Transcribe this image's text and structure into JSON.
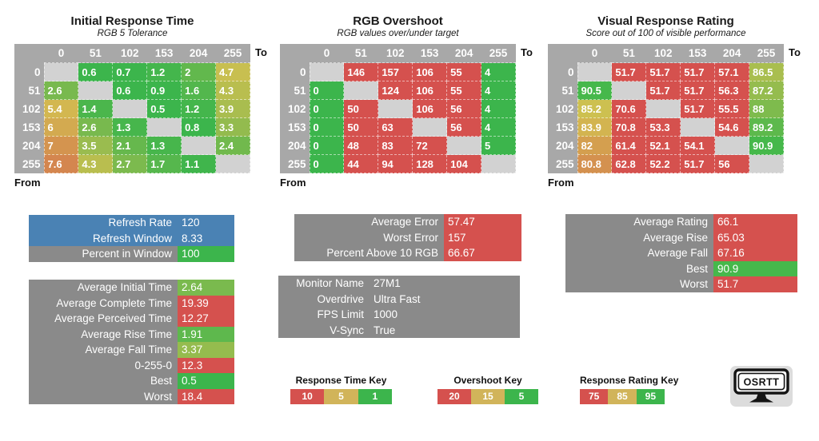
{
  "colors": {
    "green": "#3cb54c",
    "yellow": "#d3c050",
    "red": "#d5514e",
    "blue": "#4a82b4",
    "header_gray": "#a8a8a8",
    "label_gray": "#8a8a8a",
    "diag_gray": "#d2d2d2",
    "logo_card": "#dcdcdc"
  },
  "scales": {
    "time": [
      [
        1,
        "#3cb54c"
      ],
      [
        5,
        "#d3c050"
      ],
      [
        10,
        "#d5514e"
      ]
    ],
    "overshoot": [
      [
        5,
        "#3cb54c"
      ],
      [
        15,
        "#d3c050"
      ],
      [
        20,
        "#d5514e"
      ]
    ],
    "rating": [
      [
        75,
        "#d5514e"
      ],
      [
        85,
        "#d3c050"
      ],
      [
        90,
        "#46b84b"
      ]
    ]
  },
  "chart_data": [
    {
      "type": "heatmap",
      "title": "Initial Response Time",
      "subtitle": "RGB 5 Tolerance",
      "to_label": "To",
      "from_label": "From",
      "scale": "time",
      "columns": [
        "0",
        "51",
        "102",
        "153",
        "204",
        "255"
      ],
      "row_labels": [
        "0",
        "51",
        "102",
        "153",
        "204",
        "255"
      ],
      "values": [
        [
          null,
          "0.6",
          "0.7",
          "1.2",
          "2",
          "4.7"
        ],
        [
          "2.6",
          null,
          "0.6",
          "0.9",
          "1.6",
          "4.3"
        ],
        [
          "5.4",
          "1.4",
          null,
          "0.5",
          "1.2",
          "3.9"
        ],
        [
          "6",
          "2.6",
          "1.3",
          null,
          "0.8",
          "3.3"
        ],
        [
          "7",
          "3.5",
          "2.1",
          "1.3",
          null,
          "2.4"
        ],
        [
          "7.6",
          "4.3",
          "2.7",
          "1.7",
          "1.1",
          null
        ]
      ]
    },
    {
      "type": "heatmap",
      "title": "RGB Overshoot",
      "subtitle": "RGB values over/under target",
      "to_label": "To",
      "from_label": "From",
      "scale": "overshoot",
      "columns": [
        "0",
        "51",
        "102",
        "153",
        "204",
        "255"
      ],
      "row_labels": [
        "0",
        "51",
        "102",
        "153",
        "204",
        "255"
      ],
      "values": [
        [
          null,
          "146",
          "157",
          "106",
          "55",
          "4"
        ],
        [
          "0",
          null,
          "124",
          "106",
          "55",
          "4"
        ],
        [
          "0",
          "50",
          null,
          "106",
          "56",
          "4"
        ],
        [
          "0",
          "50",
          "63",
          null,
          "56",
          "4"
        ],
        [
          "0",
          "48",
          "83",
          "72",
          null,
          "5"
        ],
        [
          "0",
          "44",
          "94",
          "128",
          "104",
          null
        ]
      ]
    },
    {
      "type": "heatmap",
      "title": "Visual Response Rating",
      "subtitle": "Score out of 100 of visible performance",
      "to_label": "To",
      "from_label": "From",
      "scale": "rating",
      "columns": [
        "0",
        "51",
        "102",
        "153",
        "204",
        "255"
      ],
      "row_labels": [
        "0",
        "51",
        "102",
        "153",
        "204",
        "255"
      ],
      "values": [
        [
          null,
          "51.7",
          "51.7",
          "51.7",
          "57.1",
          "86.5"
        ],
        [
          "90.5",
          null,
          "51.7",
          "51.7",
          "56.3",
          "87.2"
        ],
        [
          "85.2",
          "70.6",
          null,
          "51.7",
          "55.5",
          "88"
        ],
        [
          "83.9",
          "70.8",
          "53.3",
          null,
          "54.6",
          "89.2"
        ],
        [
          "82",
          "61.4",
          "52.1",
          "54.1",
          null,
          "90.9"
        ],
        [
          "80.8",
          "62.8",
          "52.2",
          "51.7",
          "56",
          null
        ]
      ]
    }
  ],
  "stat_boxes": [
    {
      "id": "refresh",
      "rows": [
        {
          "label": "Refresh Rate",
          "value": "120",
          "row_bg": "#4a82b4"
        },
        {
          "label": "Refresh Window",
          "value": "8.33",
          "row_bg": "#4a82b4"
        },
        {
          "label": "Percent in Window",
          "value": "100",
          "value_bg": "#3cb54c"
        }
      ]
    },
    {
      "id": "response",
      "rows": [
        {
          "label": "Average Initial Time",
          "value": "2.64",
          "scale": "time"
        },
        {
          "label": "Average Complete Time",
          "value": "19.39",
          "scale": "time"
        },
        {
          "label": "Average Perceived Time",
          "value": "12.27",
          "scale": "time"
        },
        {
          "label": "Average Rise Time",
          "value": "1.91",
          "scale": "time"
        },
        {
          "label": "Average Fall Time",
          "value": "3.37",
          "scale": "time"
        },
        {
          "label": "0-255-0",
          "value": "12.3",
          "scale": "time"
        },
        {
          "label": "Best",
          "value": "0.5",
          "scale": "time"
        },
        {
          "label": "Worst",
          "value": "18.4",
          "scale": "time"
        }
      ]
    },
    {
      "id": "overshoot",
      "rows": [
        {
          "label": "Average Error",
          "value": "57.47",
          "scale": "overshoot"
        },
        {
          "label": "Worst Error",
          "value": "157",
          "scale": "overshoot"
        },
        {
          "label": "Percent Above 10 RGB",
          "value": "66.67",
          "scale": "overshoot"
        }
      ]
    },
    {
      "id": "settings",
      "rows": [
        {
          "label": "Monitor Name",
          "value": "27M1"
        },
        {
          "label": "Overdrive",
          "value": "Ultra Fast"
        },
        {
          "label": "FPS Limit",
          "value": "1000"
        },
        {
          "label": "V-Sync",
          "value": "True"
        }
      ]
    },
    {
      "id": "rating",
      "rows": [
        {
          "label": "Average Rating",
          "value": "66.1",
          "scale": "rating"
        },
        {
          "label": "Average Rise",
          "value": "65.03",
          "scale": "rating"
        },
        {
          "label": "Average Fall",
          "value": "67.16",
          "scale": "rating"
        },
        {
          "label": "Best",
          "value": "90.9",
          "scale": "rating"
        },
        {
          "label": "Worst",
          "value": "51.7",
          "scale": "rating"
        }
      ]
    }
  ],
  "keys": [
    {
      "title": "Response Time Key",
      "segments": [
        {
          "label": "10",
          "color": "#d5514e"
        },
        {
          "label": "5",
          "color": "#d1b45a"
        },
        {
          "label": "1",
          "color": "#3cb54c"
        }
      ]
    },
    {
      "title": "Overshoot Key",
      "segments": [
        {
          "label": "20",
          "color": "#d5514e"
        },
        {
          "label": "15",
          "color": "#d1b45a"
        },
        {
          "label": "5",
          "color": "#3cb54c"
        }
      ]
    },
    {
      "title": "Response Rating Key",
      "segments": [
        {
          "label": "75",
          "color": "#d5514e"
        },
        {
          "label": "85",
          "color": "#d1b45a"
        },
        {
          "label": "95",
          "color": "#3cb54c"
        }
      ]
    }
  ],
  "logo": {
    "text": "OSRTT"
  }
}
